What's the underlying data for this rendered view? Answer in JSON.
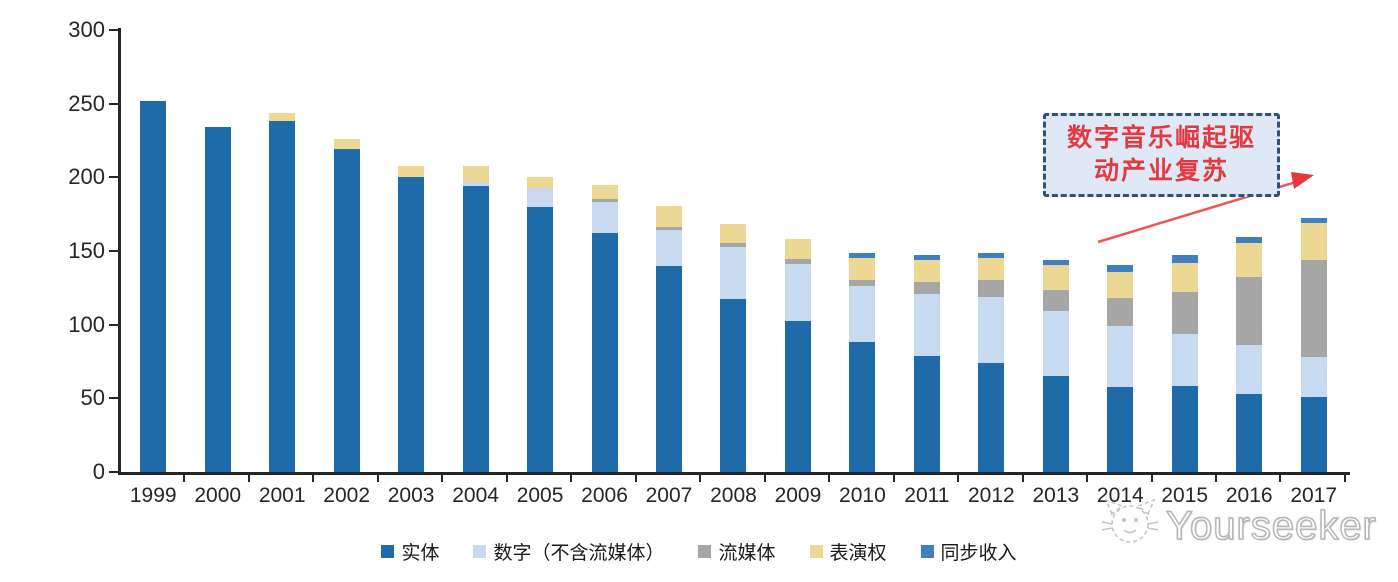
{
  "chart_data": {
    "type": "bar",
    "stacked": true,
    "title": "",
    "xlabel": "",
    "ylabel": "",
    "ylim": [
      0,
      300
    ],
    "y_ticks": [
      0,
      50,
      100,
      150,
      200,
      250,
      300
    ],
    "grid": false,
    "legend_position": "bottom",
    "categories": [
      "1999",
      "2000",
      "2001",
      "2002",
      "2003",
      "2004",
      "2005",
      "2006",
      "2007",
      "2008",
      "2009",
      "2010",
      "2011",
      "2012",
      "2013",
      "2014",
      "2015",
      "2016",
      "2017"
    ],
    "series": [
      {
        "name": "实体",
        "color": "#1F6BA9",
        "values": [
          252,
          234,
          238,
          219,
          200,
          194,
          180,
          162,
          140,
          117.5,
          102.5,
          88,
          79,
          74,
          65.5,
          58,
          58.5,
          53,
          51
        ]
      },
      {
        "name": "数字（不含流媒体）",
        "color": "#C7DAEF",
        "values": [
          0,
          0,
          0,
          0,
          0,
          3,
          12.5,
          21.5,
          24,
          35,
          38.5,
          38.5,
          42,
          45,
          43.5,
          41,
          35,
          33.5,
          27
        ]
      },
      {
        "name": "流媒体",
        "color": "#A6A6A6",
        "values": [
          0,
          0,
          0,
          0,
          0,
          0,
          0,
          1.5,
          2,
          3,
          3.5,
          3.5,
          8,
          11,
          14.5,
          19,
          29,
          46,
          66
        ]
      },
      {
        "name": "表演权",
        "color": "#EDD795",
        "values": [
          0,
          0,
          6,
          7,
          8,
          10.5,
          8,
          9.5,
          14.5,
          13,
          13.5,
          15,
          15,
          15,
          17,
          18,
          19.5,
          23,
          25
        ]
      },
      {
        "name": "同步收入",
        "color": "#4080BE",
        "values": [
          0,
          0,
          0,
          0,
          0,
          0,
          0,
          0,
          0,
          0,
          0,
          3.5,
          3,
          3.5,
          3.5,
          4.5,
          5,
          4,
          3.5
        ]
      }
    ]
  },
  "annotation": {
    "text_line1": "数字音乐崛起驱",
    "text_line2": "动产业复苏",
    "full_text": "数字音乐崛起驱动产业复苏",
    "box_fill": "#DFE9F6",
    "box_border": "#31517E",
    "text_color": "#E23A41",
    "arrow_color": "#F05455",
    "arrowhead_color": "#E6373D"
  },
  "watermark": {
    "text": "Yourseeker",
    "logo": "cat-face-icon",
    "color": "#C4C4C4"
  }
}
